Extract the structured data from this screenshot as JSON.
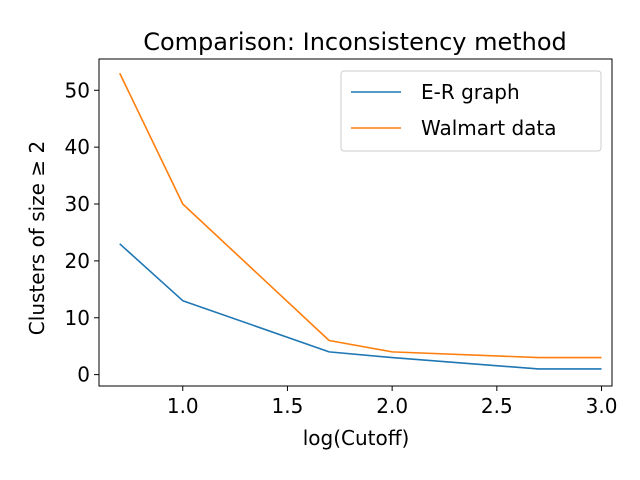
{
  "chart_data": {
    "type": "line",
    "title": "Comparison: Inconsistency method",
    "xlabel": "log(Cutoff)",
    "ylabel": "Clusters of size  ≥ 2",
    "xlim": [
      0.6,
      3.05
    ],
    "ylim": [
      -2,
      55.5
    ],
    "xticks": [
      1.0,
      1.5,
      2.0,
      2.5,
      3.0
    ],
    "xtick_labels": [
      "1.0",
      "1.5",
      "2.0",
      "2.5",
      "3.0"
    ],
    "yticks": [
      0,
      10,
      20,
      30,
      40,
      50
    ],
    "ytick_labels": [
      "0",
      "10",
      "20",
      "30",
      "40",
      "50"
    ],
    "grid": false,
    "legend_position": "upper right",
    "series": [
      {
        "name": "E-R graph",
        "color": "#1f77b4",
        "x": [
          0.699,
          1.0,
          1.699,
          2.0,
          2.699,
          3.0
        ],
        "y": [
          23,
          13,
          4,
          3,
          1,
          1
        ]
      },
      {
        "name": "Walmart data",
        "color": "#ff7f0e",
        "x": [
          0.699,
          1.0,
          1.699,
          2.0,
          2.699,
          3.0
        ],
        "y": [
          53,
          30,
          6,
          4,
          3,
          3
        ]
      }
    ]
  }
}
